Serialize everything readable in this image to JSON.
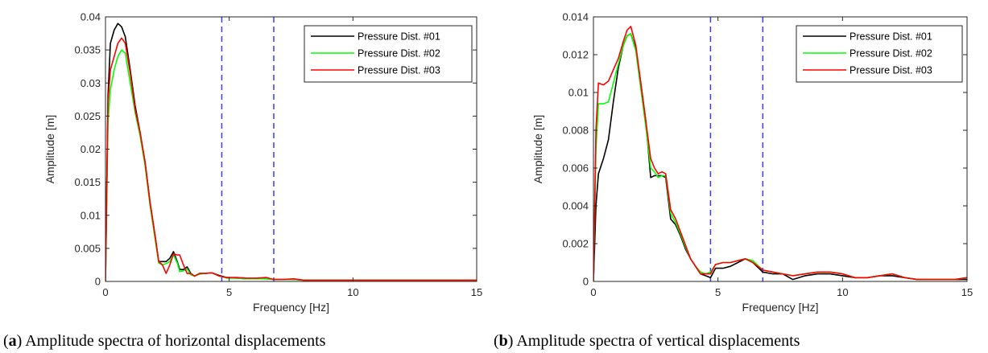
{
  "chart_data": [
    {
      "type": "line",
      "caption_label": "a",
      "caption_text": "Amplitude spectra of horizontal displacements",
      "xlabel": "Frequency [Hz]",
      "ylabel": "Amplitude [m]",
      "xlim": [
        0,
        15
      ],
      "ylim": [
        0,
        0.04
      ],
      "xticks": [
        "0",
        "5",
        "10",
        "15"
      ],
      "yticks": [
        "0",
        "0.005",
        "0.01",
        "0.015",
        "0.02",
        "0.025",
        "0.03",
        "0.035",
        "0.04"
      ],
      "grid": false,
      "legend_position": "top-right",
      "vlines": [
        4.7,
        6.8
      ],
      "series": [
        {
          "name": "Pressure Dist. #01",
          "color": "#000000",
          "x": [
            0,
            0.1,
            0.2,
            0.35,
            0.5,
            0.65,
            0.8,
            1.0,
            1.2,
            1.4,
            1.6,
            1.8,
            2.0,
            2.15,
            2.3,
            2.45,
            2.6,
            2.75,
            2.9,
            3.0,
            3.15,
            3.3,
            3.45,
            3.6,
            3.8,
            4.0,
            4.3,
            4.6,
            4.9,
            5.3,
            5.7,
            6.1,
            6.5,
            6.8,
            7.2,
            7.6,
            8.0,
            8.5,
            9.0,
            9.5,
            10,
            10.5,
            11,
            11.5,
            12,
            12.5,
            13,
            13.5,
            14,
            14.5,
            15
          ],
          "y": [
            0,
            0.028,
            0.036,
            0.038,
            0.039,
            0.0385,
            0.037,
            0.032,
            0.0265,
            0.0225,
            0.018,
            0.012,
            0.007,
            0.003,
            0.003,
            0.003,
            0.0035,
            0.0045,
            0.003,
            0.0018,
            0.0018,
            0.0022,
            0.0012,
            0.0008,
            0.0012,
            0.0012,
            0.0013,
            0.0009,
            0.0006,
            0.0005,
            0.0004,
            0.0004,
            0.0004,
            0.0003,
            0.0003,
            0.0003,
            0.0002,
            0.0002,
            0.0002,
            0.0002,
            0.0002,
            0.0002,
            0.0002,
            0.0002,
            0.0002,
            0.0002,
            0.0002,
            0.0002,
            0.0002,
            0.0002,
            0.0002
          ]
        },
        {
          "name": "Pressure Dist. #02",
          "color": "#00ff00",
          "x": [
            0,
            0.1,
            0.2,
            0.35,
            0.5,
            0.65,
            0.8,
            1.0,
            1.2,
            1.4,
            1.6,
            1.8,
            2.0,
            2.15,
            2.3,
            2.45,
            2.6,
            2.75,
            2.9,
            3.0,
            3.15,
            3.3,
            3.45,
            3.6,
            3.8,
            4.0,
            4.3,
            4.6,
            4.9,
            5.3,
            5.7,
            6.1,
            6.5,
            6.8,
            7.2,
            7.6,
            8.0,
            8.5,
            9.0,
            9.5,
            10,
            10.5,
            11,
            11.5,
            12,
            12.5,
            13,
            13.5,
            14,
            14.5,
            15
          ],
          "y": [
            0,
            0.024,
            0.029,
            0.032,
            0.034,
            0.035,
            0.0345,
            0.03,
            0.0255,
            0.022,
            0.0175,
            0.0115,
            0.0065,
            0.0028,
            0.0025,
            0.0027,
            0.003,
            0.004,
            0.0028,
            0.0015,
            0.0016,
            0.0019,
            0.001,
            0.0008,
            0.0011,
            0.0012,
            0.0013,
            0.0008,
            0.0005,
            0.0005,
            0.0004,
            0.0004,
            0.0004,
            0.0003,
            0.0003,
            0.0003,
            0.0002,
            0.0002,
            0.0002,
            0.0002,
            0.0002,
            0.0002,
            0.0002,
            0.0002,
            0.0002,
            0.0002,
            0.0002,
            0.0002,
            0.0002,
            0.0002,
            0.0002
          ]
        },
        {
          "name": "Pressure Dist. #03",
          "color": "#ff0000",
          "x": [
            0,
            0.1,
            0.2,
            0.35,
            0.5,
            0.65,
            0.8,
            1.0,
            1.2,
            1.4,
            1.6,
            1.8,
            2.0,
            2.15,
            2.3,
            2.45,
            2.6,
            2.75,
            2.9,
            3.0,
            3.15,
            3.3,
            3.45,
            3.6,
            3.8,
            4.0,
            4.3,
            4.6,
            4.9,
            5.3,
            5.7,
            6.1,
            6.5,
            6.8,
            7.2,
            7.6,
            8.0,
            8.5,
            9.0,
            9.5,
            10,
            10.5,
            11,
            11.5,
            12,
            12.5,
            13,
            13.5,
            14,
            14.5,
            15
          ],
          "y": [
            0,
            0.027,
            0.032,
            0.034,
            0.036,
            0.0368,
            0.036,
            0.0315,
            0.026,
            0.0225,
            0.018,
            0.012,
            0.007,
            0.003,
            0.0025,
            0.0012,
            0.0025,
            0.0042,
            0.004,
            0.004,
            0.0025,
            0.0012,
            0.0012,
            0.0008,
            0.0012,
            0.0012,
            0.0013,
            0.0008,
            0.0006,
            0.0006,
            0.0005,
            0.0005,
            0.0006,
            0.0003,
            0.0003,
            0.0004,
            0.0002,
            0.0002,
            0.0002,
            0.0002,
            0.0002,
            0.0002,
            0.0002,
            0.0002,
            0.0002,
            0.0002,
            0.0002,
            0.0002,
            0.0002,
            0.0002,
            0.0002
          ]
        }
      ]
    },
    {
      "type": "line",
      "caption_label": "b",
      "caption_text": "Amplitude spectra of vertical displacements",
      "xlabel": "Frequency [Hz]",
      "ylabel": "Amplitude [m]",
      "xlim": [
        0,
        15
      ],
      "ylim": [
        0,
        0.014
      ],
      "xticks": [
        "0",
        "5",
        "10",
        "15"
      ],
      "yticks": [
        "0",
        "0.002",
        "0.004",
        "0.006",
        "0.008",
        "0.01",
        "0.012",
        "0.014"
      ],
      "grid": false,
      "legend_position": "top-right",
      "vlines": [
        4.7,
        6.8
      ],
      "series": [
        {
          "name": "Pressure Dist. #01",
          "color": "#000000",
          "x": [
            0,
            0.1,
            0.2,
            0.4,
            0.6,
            0.8,
            1.0,
            1.2,
            1.35,
            1.5,
            1.7,
            1.9,
            2.1,
            2.3,
            2.45,
            2.6,
            2.75,
            2.9,
            3.1,
            3.3,
            3.5,
            3.7,
            3.9,
            4.1,
            4.3,
            4.5,
            4.7,
            4.9,
            5.2,
            5.5,
            5.8,
            6.1,
            6.4,
            6.8,
            7.2,
            7.6,
            8.0,
            8.5,
            9.0,
            9.5,
            10.0,
            10.5,
            11.0,
            11.5,
            12.0,
            12.5,
            13.0,
            13.5,
            14.0,
            14.5,
            15.0
          ],
          "y": [
            0,
            0.004,
            0.0057,
            0.0065,
            0.0075,
            0.0095,
            0.0113,
            0.0125,
            0.013,
            0.0131,
            0.0123,
            0.0105,
            0.0085,
            0.0055,
            0.0056,
            0.0056,
            0.0056,
            0.0055,
            0.0033,
            0.003,
            0.0024,
            0.0017,
            0.0012,
            0.0008,
            0.0004,
            0.0003,
            0.0002,
            0.0007,
            0.0007,
            0.0008,
            0.001,
            0.0012,
            0.001,
            0.0005,
            0.0004,
            0.0004,
            0.0001,
            0.0003,
            0.0004,
            0.0004,
            0.0003,
            0.0002,
            0.0002,
            0.0003,
            0.0003,
            0.0002,
            0.0001,
            0.0001,
            0.0001,
            0.0001,
            0.0001
          ]
        },
        {
          "name": "Pressure Dist. #02",
          "color": "#00ff00",
          "x": [
            0,
            0.1,
            0.2,
            0.4,
            0.6,
            0.8,
            1.0,
            1.2,
            1.35,
            1.5,
            1.7,
            1.9,
            2.1,
            2.3,
            2.45,
            2.6,
            2.75,
            2.9,
            3.1,
            3.3,
            3.5,
            3.7,
            3.9,
            4.1,
            4.3,
            4.5,
            4.7,
            4.9,
            5.2,
            5.5,
            5.8,
            6.1,
            6.4,
            6.8,
            7.2,
            7.6,
            8.0,
            8.5,
            9.0,
            9.5,
            10.0,
            10.5,
            11.0,
            11.5,
            12.0,
            12.5,
            13.0,
            13.5,
            14.0,
            14.5,
            15.0
          ],
          "y": [
            0,
            0.007,
            0.0094,
            0.0094,
            0.0095,
            0.0105,
            0.0115,
            0.0125,
            0.013,
            0.0131,
            0.0122,
            0.0102,
            0.0082,
            0.006,
            0.0058,
            0.0055,
            0.0056,
            0.0056,
            0.0036,
            0.0031,
            0.0025,
            0.0018,
            0.0012,
            0.0008,
            0.0005,
            0.0004,
            0.0005,
            0.0009,
            0.001,
            0.001,
            0.0011,
            0.0012,
            0.0011,
            0.0006,
            0.0005,
            0.0004,
            0.0003,
            0.0004,
            0.0005,
            0.0005,
            0.0004,
            0.0002,
            0.0002,
            0.0003,
            0.0004,
            0.0002,
            0.0001,
            0.0001,
            0.0001,
            0.0001,
            0.0002
          ]
        },
        {
          "name": "Pressure Dist. #03",
          "color": "#ff0000",
          "x": [
            0,
            0.1,
            0.2,
            0.4,
            0.6,
            0.8,
            1.0,
            1.2,
            1.35,
            1.5,
            1.7,
            1.9,
            2.1,
            2.3,
            2.45,
            2.6,
            2.75,
            2.9,
            3.1,
            3.3,
            3.5,
            3.7,
            3.9,
            4.1,
            4.3,
            4.5,
            4.7,
            4.9,
            5.2,
            5.5,
            5.8,
            6.1,
            6.4,
            6.8,
            7.2,
            7.6,
            8.0,
            8.5,
            9.0,
            9.5,
            10.0,
            10.5,
            11.0,
            11.5,
            12.0,
            12.5,
            13.0,
            13.5,
            14.0,
            14.5,
            15.0
          ],
          "y": [
            0,
            0.008,
            0.0105,
            0.0104,
            0.0106,
            0.0112,
            0.0118,
            0.0127,
            0.0133,
            0.0135,
            0.0125,
            0.0105,
            0.0085,
            0.0065,
            0.006,
            0.0057,
            0.0058,
            0.0057,
            0.0038,
            0.0033,
            0.0026,
            0.0019,
            0.0012,
            0.0008,
            0.0004,
            0.0004,
            0.0004,
            0.0009,
            0.001,
            0.001,
            0.0011,
            0.0012,
            0.001,
            0.0006,
            0.0005,
            0.0004,
            0.0003,
            0.0004,
            0.0005,
            0.0005,
            0.0004,
            0.0002,
            0.0002,
            0.0003,
            0.0004,
            0.0002,
            0.0001,
            0.0001,
            0.0001,
            0.0001,
            0.0002
          ]
        }
      ]
    }
  ]
}
